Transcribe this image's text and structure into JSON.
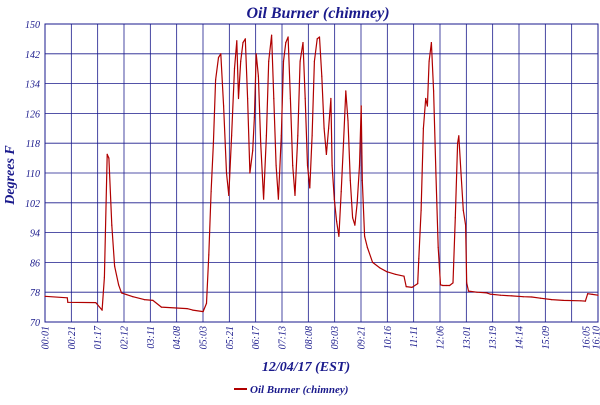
{
  "chart_data": {
    "type": "line",
    "title": "Oil Burner (chimney)",
    "xlabel": "12/04/17 (EST)",
    "ylabel": "Degrees F",
    "ylim": [
      70,
      150
    ],
    "yticks": [
      70,
      78,
      86,
      94,
      102,
      110,
      118,
      126,
      134,
      142,
      150
    ],
    "xlim": [
      "00:01",
      "16:10"
    ],
    "xtick_labels": [
      "00:01",
      "00:21",
      "01:17",
      "02:12",
      "03:11",
      "04:08",
      "05:03",
      "05:21",
      "06:17",
      "07:13",
      "08:08",
      "09:03",
      "09:21",
      "10:16",
      "11:11",
      "12:06",
      "13:01",
      "13:19",
      "14:14",
      "15:09",
      "16:05",
      "16:10"
    ],
    "grid": true,
    "legend_position": "bottom",
    "series": [
      {
        "name": "Oil Burner (chimney)",
        "color": "#b00000",
        "points": [
          [
            "00:01",
            76.9
          ],
          [
            "00:40",
            76.5
          ],
          [
            "00:41",
            75.3
          ],
          [
            "01:30",
            75.2
          ],
          [
            "01:41",
            73.2
          ],
          [
            "01:45",
            82.0
          ],
          [
            "01:50",
            115.0
          ],
          [
            "01:53",
            114.0
          ],
          [
            "01:58",
            96.0
          ],
          [
            "02:03",
            85.0
          ],
          [
            "02:10",
            80.0
          ],
          [
            "02:15",
            77.8
          ],
          [
            "02:35",
            76.8
          ],
          [
            "02:55",
            76.0
          ],
          [
            "03:10",
            75.8
          ],
          [
            "03:25",
            74.0
          ],
          [
            "04:10",
            73.6
          ],
          [
            "04:20",
            73.2
          ],
          [
            "04:38",
            72.8
          ],
          [
            "04:44",
            75.0
          ],
          [
            "04:48",
            88.0
          ],
          [
            "04:52",
            105.0
          ],
          [
            "04:56",
            118.0
          ],
          [
            "05:00",
            135.0
          ],
          [
            "05:05",
            141.0
          ],
          [
            "05:09",
            142.0
          ],
          [
            "05:14",
            128.0
          ],
          [
            "05:19",
            110.0
          ],
          [
            "05:23",
            104.0
          ],
          [
            "05:28",
            120.0
          ],
          [
            "05:33",
            138.0
          ],
          [
            "05:37",
            145.5
          ],
          [
            "05:40",
            130.0
          ],
          [
            "05:44",
            140.0
          ],
          [
            "05:48",
            145.0
          ],
          [
            "05:52",
            146.0
          ],
          [
            "05:56",
            130.0
          ],
          [
            "06:00",
            110.0
          ],
          [
            "06:05",
            116.0
          ],
          [
            "06:08",
            125.0
          ],
          [
            "06:11",
            142.0
          ],
          [
            "06:15",
            136.0
          ],
          [
            "06:19",
            118.0
          ],
          [
            "06:24",
            103.0
          ],
          [
            "06:29",
            120.0
          ],
          [
            "06:33",
            140.0
          ],
          [
            "06:38",
            147.0
          ],
          [
            "06:42",
            130.0
          ],
          [
            "06:46",
            112.0
          ],
          [
            "06:50",
            103.0
          ],
          [
            "06:55",
            120.0
          ],
          [
            "06:59",
            140.0
          ],
          [
            "07:03",
            145.0
          ],
          [
            "07:07",
            146.5
          ],
          [
            "07:11",
            130.0
          ],
          [
            "07:15",
            112.0
          ],
          [
            "07:19",
            104.0
          ],
          [
            "07:24",
            120.0
          ],
          [
            "07:28",
            140.0
          ],
          [
            "07:33",
            145.0
          ],
          [
            "07:37",
            130.0
          ],
          [
            "07:41",
            112.0
          ],
          [
            "07:45",
            106.0
          ],
          [
            "07:49",
            120.0
          ],
          [
            "07:53",
            140.0
          ],
          [
            "07:58",
            146.0
          ],
          [
            "08:02",
            146.5
          ],
          [
            "08:06",
            136.0
          ],
          [
            "08:10",
            122.0
          ],
          [
            "08:14",
            115.0
          ],
          [
            "08:18",
            122.0
          ],
          [
            "08:22",
            130.0
          ],
          [
            "08:24",
            112.0
          ],
          [
            "08:28",
            103.0
          ],
          [
            "08:32",
            97.0
          ],
          [
            "08:36",
            93.0
          ],
          [
            "08:40",
            105.0
          ],
          [
            "08:44",
            118.0
          ],
          [
            "08:48",
            132.0
          ],
          [
            "08:52",
            124.0
          ],
          [
            "08:56",
            108.0
          ],
          [
            "09:00",
            98.0
          ],
          [
            "09:04",
            96.0
          ],
          [
            "09:08",
            102.0
          ],
          [
            "09:12",
            112.0
          ],
          [
            "09:15",
            128.0
          ],
          [
            "09:17",
            108.0
          ],
          [
            "09:21",
            93.0
          ],
          [
            "09:26",
            90.0
          ],
          [
            "09:35",
            86.0
          ],
          [
            "09:48",
            84.5
          ],
          [
            "10:00",
            83.5
          ],
          [
            "10:15",
            82.8
          ],
          [
            "10:30",
            82.3
          ],
          [
            "10:34",
            79.5
          ],
          [
            "10:44",
            79.3
          ],
          [
            "10:54",
            80.3
          ],
          [
            "10:56",
            87.0
          ],
          [
            "11:00",
            100.0
          ],
          [
            "11:04",
            122.0
          ],
          [
            "11:08",
            130.0
          ],
          [
            "11:11",
            128.0
          ],
          [
            "11:14",
            140.0
          ],
          [
            "11:18",
            145.0
          ],
          [
            "11:22",
            132.0
          ],
          [
            "11:26",
            110.0
          ],
          [
            "11:30",
            90.0
          ],
          [
            "11:34",
            80.0
          ],
          [
            "11:38",
            79.8
          ],
          [
            "11:44",
            79.8
          ],
          [
            "11:50",
            79.8
          ],
          [
            "11:56",
            80.5
          ],
          [
            "12:00",
            98.0
          ],
          [
            "12:04",
            118.0
          ],
          [
            "12:06",
            120.0
          ],
          [
            "12:10",
            110.0
          ],
          [
            "12:14",
            100.0
          ],
          [
            "12:18",
            96.0
          ],
          [
            "12:20",
            80.5
          ],
          [
            "12:23",
            78.3
          ],
          [
            "12:38",
            78.0
          ],
          [
            "12:55",
            77.8
          ],
          [
            "13:01",
            77.5
          ],
          [
            "13:19",
            77.2
          ],
          [
            "13:39",
            77.0
          ],
          [
            "13:59",
            76.8
          ],
          [
            "14:14",
            76.7
          ],
          [
            "14:29",
            76.4
          ],
          [
            "14:49",
            76.0
          ],
          [
            "15:09",
            75.8
          ],
          [
            "15:40",
            75.7
          ],
          [
            "15:48",
            75.6
          ],
          [
            "15:52",
            77.6
          ],
          [
            "16:00",
            77.4
          ],
          [
            "16:10",
            77.2
          ]
        ]
      }
    ]
  }
}
